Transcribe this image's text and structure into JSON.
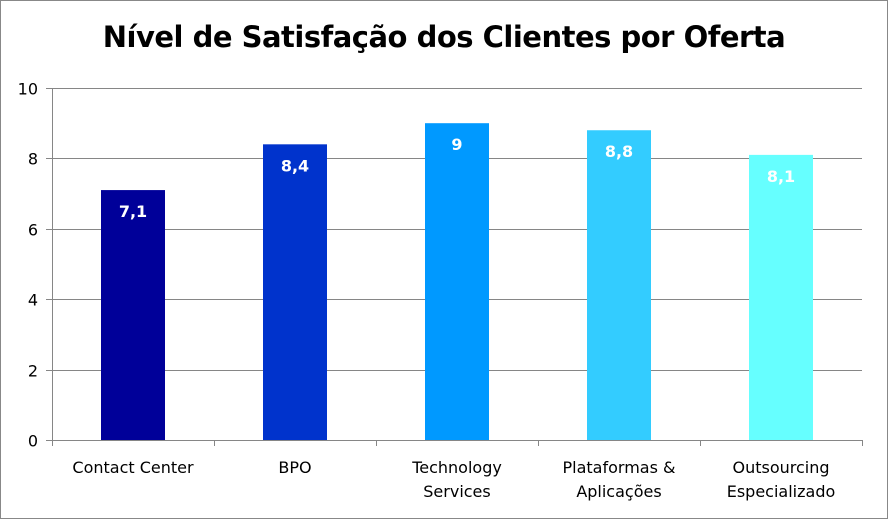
{
  "chart_data": {
    "type": "bar",
    "title": "Nível de Satisfação dos Clientes por Oferta",
    "xlabel": "",
    "ylabel": "",
    "categories": [
      [
        "Contact Center"
      ],
      [
        "BPO"
      ],
      [
        "Technology",
        "Services"
      ],
      [
        "Plataformas &",
        "Aplicações"
      ],
      [
        "Outsourcing",
        "Especializado"
      ]
    ],
    "values": [
      7.1,
      8.4,
      9,
      8.8,
      8.1
    ],
    "data_labels": [
      "7,1",
      "8,4",
      "9",
      "8,8",
      "8,1"
    ],
    "bar_colors": [
      "#000099",
      "#0033CC",
      "#0099FF",
      "#33CCFF",
      "#66FFFF"
    ],
    "ylim": [
      0,
      10
    ],
    "yticks": [
      0,
      2,
      4,
      6,
      8,
      10
    ],
    "ytick_labels": [
      "0",
      "2",
      "4",
      "6",
      "8",
      "10"
    ],
    "grid": true,
    "legend": "none"
  }
}
